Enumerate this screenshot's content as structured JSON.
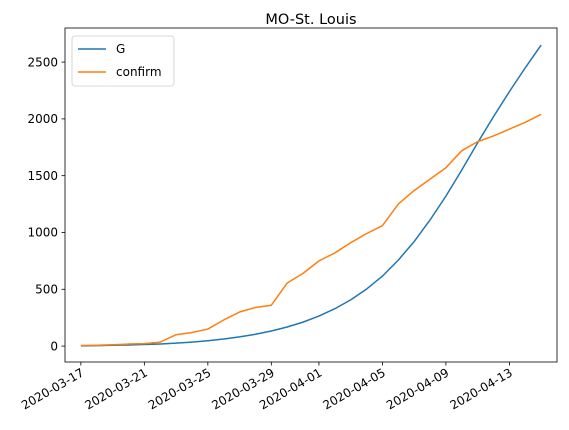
{
  "chart_data": {
    "type": "line",
    "title": "MO-St. Louis",
    "xlabel": "",
    "ylabel": "",
    "x_axis": "date",
    "xlim": [
      "2020-03-16",
      "2020-04-16"
    ],
    "ylim": [
      -140,
      2800
    ],
    "x_ticks": [
      "2020-03-17",
      "2020-03-21",
      "2020-03-25",
      "2020-03-29",
      "2020-04-01",
      "2020-04-05",
      "2020-04-09",
      "2020-04-13"
    ],
    "y_ticks": [
      0,
      500,
      1000,
      1500,
      2000,
      2500
    ],
    "grid": false,
    "legend": "top-left",
    "x": [
      "2020-03-17",
      "2020-03-18",
      "2020-03-19",
      "2020-03-20",
      "2020-03-21",
      "2020-03-22",
      "2020-03-23",
      "2020-03-24",
      "2020-03-25",
      "2020-03-26",
      "2020-03-27",
      "2020-03-28",
      "2020-03-29",
      "2020-03-30",
      "2020-03-31",
      "2020-04-01",
      "2020-04-02",
      "2020-04-03",
      "2020-04-04",
      "2020-04-05",
      "2020-04-06",
      "2020-04-07",
      "2020-04-08",
      "2020-04-09",
      "2020-04-10",
      "2020-04-11",
      "2020-04-12",
      "2020-04-13",
      "2020-04-14",
      "2020-04-15"
    ],
    "series": [
      {
        "name": "G",
        "color": "#1f77b4",
        "values": [
          2,
          4,
          7,
          10,
          14,
          19,
          26,
          35,
          47,
          62,
          81,
          104,
          133,
          168,
          211,
          264,
          329,
          407,
          502,
          616,
          757,
          920,
          1110,
          1320,
          1550,
          1790,
          2020,
          2240,
          2450,
          2650
        ]
      },
      {
        "name": "confirm",
        "color": "#ff7f0e",
        "values": [
          5,
          8,
          12,
          18,
          22,
          35,
          100,
          120,
          150,
          230,
          300,
          340,
          360,
          555,
          640,
          750,
          820,
          910,
          990,
          1060,
          1250,
          1370,
          1470,
          1570,
          1720,
          1800,
          1850,
          1910,
          1970,
          2040
        ]
      }
    ]
  }
}
